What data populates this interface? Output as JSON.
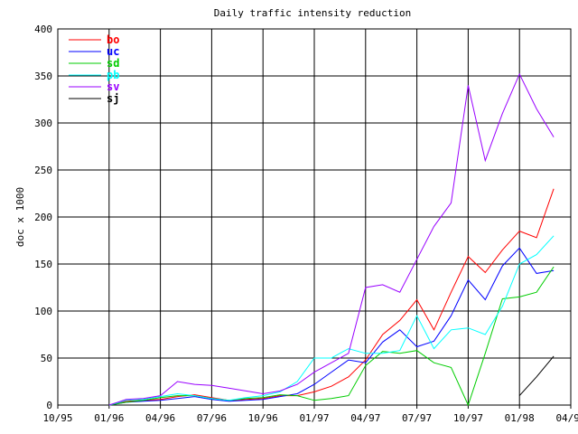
{
  "chart_data": {
    "type": "line",
    "title": "Daily traffic intensity reduction",
    "xlabel": "",
    "ylabel": "doc x 1000",
    "x_ticks": [
      "10/95",
      "01/96",
      "04/96",
      "07/96",
      "10/96",
      "01/97",
      "04/97",
      "07/97",
      "10/97",
      "01/98",
      "04/98"
    ],
    "x_range": [
      "10/95",
      "04/98"
    ],
    "ylim": [
      0,
      400
    ],
    "y_ticks": [
      0,
      50,
      100,
      150,
      200,
      250,
      300,
      350,
      400
    ],
    "grid": true,
    "legend_position": "top-left",
    "series": [
      {
        "name": "bo",
        "color": "#ff0000",
        "points": [
          [
            "01/96",
            0
          ],
          [
            "02/96",
            4
          ],
          [
            "03/96",
            5
          ],
          [
            "04/96",
            6
          ],
          [
            "05/96",
            9
          ],
          [
            "06/96",
            11
          ],
          [
            "07/96",
            8
          ],
          [
            "08/96",
            5
          ],
          [
            "09/96",
            6
          ],
          [
            "10/96",
            7
          ],
          [
            "11/96",
            10
          ],
          [
            "12/96",
            10
          ],
          [
            "01/97",
            14
          ],
          [
            "02/97",
            20
          ],
          [
            "03/97",
            30
          ],
          [
            "04/97",
            48
          ],
          [
            "05/97",
            75
          ],
          [
            "06/97",
            90
          ],
          [
            "07/97",
            112
          ],
          [
            "08/97",
            80
          ],
          [
            "09/97",
            120
          ],
          [
            "10/97",
            158
          ],
          [
            "11/97",
            141
          ],
          [
            "12/97",
            165
          ],
          [
            "01/98",
            185
          ],
          [
            "02/98",
            178
          ],
          [
            "03/98",
            230
          ]
        ]
      },
      {
        "name": "uc",
        "color": "#0000ff",
        "points": [
          [
            "01/96",
            0
          ],
          [
            "02/96",
            3
          ],
          [
            "03/96",
            4
          ],
          [
            "04/96",
            5
          ],
          [
            "05/96",
            7
          ],
          [
            "06/96",
            9
          ],
          [
            "07/96",
            6
          ],
          [
            "08/96",
            4
          ],
          [
            "09/96",
            5
          ],
          [
            "10/96",
            6
          ],
          [
            "11/96",
            9
          ],
          [
            "12/96",
            12
          ],
          [
            "01/97",
            22
          ],
          [
            "02/97",
            35
          ],
          [
            "03/97",
            48
          ],
          [
            "04/97",
            45
          ],
          [
            "05/97",
            67
          ],
          [
            "06/97",
            80
          ],
          [
            "07/97",
            62
          ],
          [
            "08/97",
            68
          ],
          [
            "09/97",
            95
          ],
          [
            "10/97",
            133
          ],
          [
            "11/97",
            112
          ],
          [
            "12/97",
            148
          ],
          [
            "01/98",
            167
          ],
          [
            "02/98",
            140
          ],
          [
            "03/98",
            143
          ]
        ]
      },
      {
        "name": "sd",
        "color": "#00cc00",
        "points": [
          [
            "01/96",
            0
          ],
          [
            "02/96",
            3
          ],
          [
            "03/96",
            5
          ],
          [
            "04/96",
            8
          ],
          [
            "05/96",
            10
          ],
          [
            "06/96",
            10
          ],
          [
            "07/96",
            7
          ],
          [
            "08/96",
            5
          ],
          [
            "09/96",
            7
          ],
          [
            "10/96",
            8
          ],
          [
            "11/96",
            11
          ],
          [
            "12/96",
            10
          ],
          [
            "01/97",
            5
          ],
          [
            "02/97",
            7
          ],
          [
            "03/97",
            10
          ],
          [
            "04/97",
            42
          ],
          [
            "05/97",
            57
          ],
          [
            "06/97",
            55
          ],
          [
            "07/97",
            58
          ],
          [
            "08/97",
            45
          ],
          [
            "09/97",
            40
          ],
          [
            "10/97",
            0
          ],
          [
            "11/97",
            55
          ],
          [
            "12/97",
            113
          ],
          [
            "01/98",
            115
          ],
          [
            "02/98",
            120
          ],
          [
            "03/98",
            147
          ]
        ]
      },
      {
        "name": "pb",
        "color": "#00ffff",
        "points": [
          [
            "01/96",
            0
          ],
          [
            "02/96",
            5
          ],
          [
            "03/96",
            6
          ],
          [
            "04/96",
            9
          ],
          [
            "05/96",
            12
          ],
          [
            "06/96",
            10
          ],
          [
            "07/96",
            7
          ],
          [
            "08/96",
            5
          ],
          [
            "09/96",
            8
          ],
          [
            "10/96",
            10
          ],
          [
            "11/96",
            14
          ],
          [
            "12/96",
            25
          ],
          [
            "01/97",
            50
          ],
          [
            "02/97",
            50
          ],
          [
            "03/97",
            60
          ],
          [
            "04/97",
            55
          ],
          [
            "05/97",
            55
          ],
          [
            "06/97",
            58
          ],
          [
            "07/97",
            95
          ],
          [
            "08/97",
            60
          ],
          [
            "09/97",
            80
          ],
          [
            "10/97",
            82
          ],
          [
            "11/97",
            75
          ],
          [
            "12/97",
            105
          ],
          [
            "01/98",
            150
          ],
          [
            "02/98",
            160
          ],
          [
            "03/98",
            180
          ]
        ]
      },
      {
        "name": "sv",
        "color": "#9900ff",
        "points": [
          [
            "01/96",
            0
          ],
          [
            "02/96",
            6
          ],
          [
            "03/96",
            7
          ],
          [
            "04/96",
            10
          ],
          [
            "05/96",
            25
          ],
          [
            "06/96",
            22
          ],
          [
            "07/96",
            21
          ],
          [
            "08/96",
            18
          ],
          [
            "09/96",
            15
          ],
          [
            "10/96",
            12
          ],
          [
            "11/96",
            15
          ],
          [
            "12/96",
            22
          ],
          [
            "01/97",
            35
          ],
          [
            "02/97",
            45
          ],
          [
            "03/97",
            55
          ],
          [
            "04/97",
            125
          ],
          [
            "05/97",
            128
          ],
          [
            "06/97",
            120
          ],
          [
            "07/97",
            155
          ],
          [
            "08/97",
            190
          ],
          [
            "09/97",
            215
          ],
          [
            "10/97",
            340
          ],
          [
            "11/97",
            260
          ],
          [
            "12/97",
            310
          ],
          [
            "01/98",
            352
          ],
          [
            "02/98",
            315
          ],
          [
            "03/98",
            285
          ]
        ]
      },
      {
        "name": "sj",
        "color": "#000000",
        "points": [
          [
            "01/98",
            10
          ],
          [
            "02/98",
            30
          ],
          [
            "03/98",
            52
          ]
        ]
      }
    ]
  }
}
